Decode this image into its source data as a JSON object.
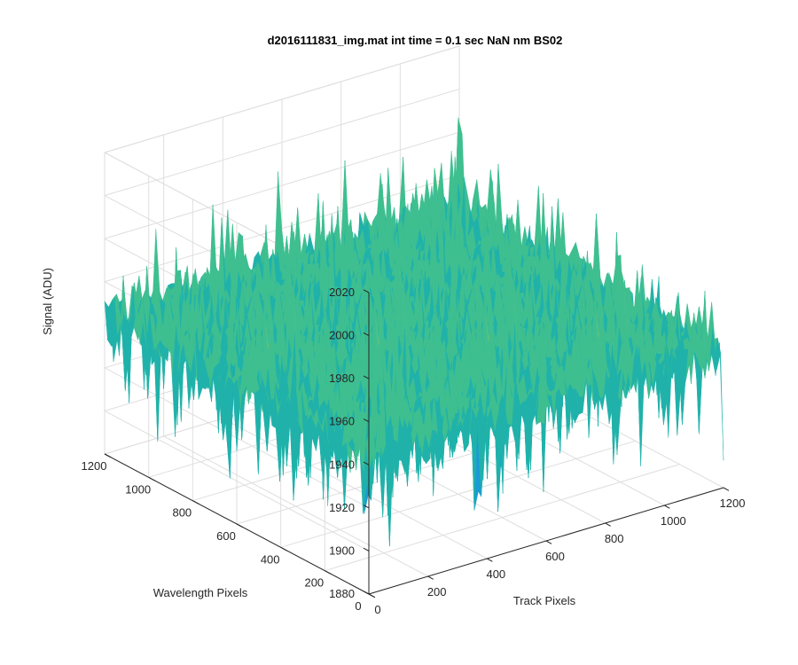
{
  "chart_data": {
    "type": "surface",
    "title": "d2016111831_img.mat int time = 0.1 sec  NaN nm BS02",
    "xlabel": "Track Pixels",
    "ylabel": "Wavelength Pixels",
    "zlabel": "Signal (ADU)",
    "xlim": [
      0,
      1200
    ],
    "ylim": [
      0,
      1200
    ],
    "zlim": [
      1880,
      2020
    ],
    "xticks": [
      0,
      200,
      400,
      600,
      800,
      1000,
      1200
    ],
    "yticks": [
      0,
      200,
      400,
      600,
      800,
      1000,
      1200
    ],
    "zticks": [
      1880,
      1900,
      1920,
      1940,
      1960,
      1980,
      2000,
      2020
    ],
    "xtick_labels": [
      "0",
      "200",
      "400",
      "600",
      "800",
      "1000",
      "1200"
    ],
    "ytick_labels": [
      "0",
      "200",
      "400",
      "600",
      "800",
      "1000",
      "1200"
    ],
    "ztick_labels": [
      "1880",
      "1900",
      "1920",
      "1940",
      "1960",
      "1980",
      "2000",
      "2020"
    ],
    "grid": true,
    "surface": {
      "x_extent": [
        0,
        1200
      ],
      "y_extent": [
        0,
        1200
      ],
      "mean_signal": 1945,
      "min_signal": 1885,
      "max_signal": 2005,
      "colormap": [
        "#0072bd",
        "#1a9ad6",
        "#20b2aa",
        "#3fbf90",
        "#90c860",
        "#d8cf48"
      ]
    }
  }
}
